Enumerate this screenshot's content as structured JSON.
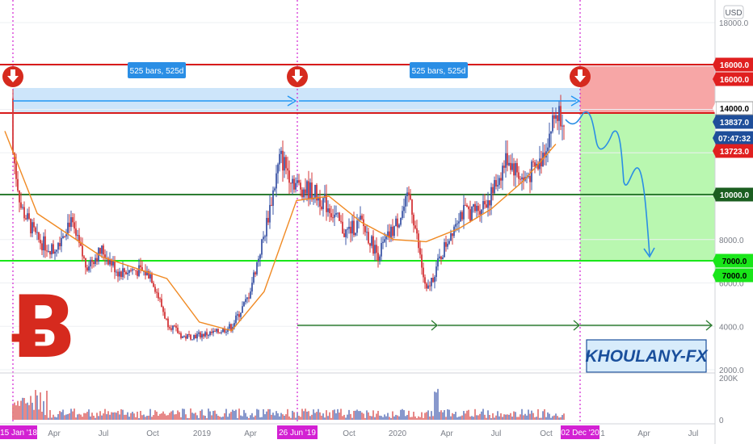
{
  "currency_label": "USD",
  "watermark_text": "KHOULANY-FX",
  "bitcoin_logo_glyph": "Ƀ",
  "chart_data": {
    "type": "candlestick",
    "title": "",
    "price_ticks": [
      "18000.0",
      "16000.0",
      "10000.0",
      "8000.0",
      "7000.0",
      "6000.0",
      "4000.0",
      "2000.0"
    ],
    "volume_ticks": [
      "200K",
      "0"
    ],
    "time_ticks": [
      "Apr",
      "Jul",
      "Oct",
      "2019",
      "Apr",
      "Oct",
      "2020",
      "Apr",
      "Jul",
      "Oct",
      "1",
      "Apr",
      "Jul"
    ],
    "highlighted_dates": [
      "15 Jan '18",
      "26 Jun '19",
      "02 Dec '20"
    ],
    "price_tags": [
      {
        "label": "16000.0",
        "color": "#e01f1f",
        "text_color": "#ffffff"
      },
      {
        "label": "16000.0",
        "color": "#e01f1f",
        "text_color": "#ffffff"
      },
      {
        "label": "14000.0",
        "color": "#ffffff",
        "text_color": "#000000"
      },
      {
        "label": "13837.0",
        "color": "#1f4e9a",
        "text_color": "#ffffff"
      },
      {
        "label": "07:47:32",
        "color": "#1f4e9a",
        "text_color": "#ffffff"
      },
      {
        "label": "13723.0",
        "color": "#e01f1f",
        "text_color": "#ffffff"
      },
      {
        "label": "10000.0",
        "color": "#1b5e20",
        "text_color": "#ffffff"
      },
      {
        "label": "7000.0",
        "color": "#19e619",
        "text_color": "#000000"
      },
      {
        "label": "7000.0",
        "color": "#19e619",
        "text_color": "#000000"
      }
    ],
    "ruler_labels": [
      "525 bars, 525d",
      "525 bars, 525d"
    ],
    "horizontal_levels": [
      {
        "price": 16000,
        "color": "#d81b1b",
        "name": "resistance-16000"
      },
      {
        "price": 13723,
        "color": "#d81b1b",
        "name": "resistance-13723"
      },
      {
        "price": 10000,
        "color": "#2e7d32",
        "name": "support-10000"
      },
      {
        "price": 7000,
        "color": "#19e619",
        "name": "support-7000"
      }
    ],
    "price_series": {
      "x": [
        "2018-01",
        "2018-02",
        "2018-03",
        "2018-04",
        "2018-05",
        "2018-06",
        "2018-07",
        "2018-08",
        "2018-09",
        "2018-10",
        "2018-11",
        "2018-12",
        "2019-01",
        "2019-02",
        "2019-03",
        "2019-04",
        "2019-05",
        "2019-06",
        "2019-07",
        "2019-08",
        "2019-09",
        "2019-10",
        "2019-11",
        "2019-12",
        "2020-01",
        "2020-02",
        "2020-03",
        "2020-04",
        "2020-05",
        "2020-06",
        "2020-07",
        "2020-08",
        "2020-09",
        "2020-10",
        "2020-11"
      ],
      "values": [
        14500,
        9500,
        8000,
        7500,
        8900,
        6800,
        7500,
        6500,
        6600,
        6400,
        4200,
        3500,
        3600,
        3700,
        4000,
        5300,
        8200,
        11800,
        10500,
        10200,
        9500,
        8300,
        8800,
        7300,
        8500,
        10000,
        5500,
        7400,
        9200,
        9300,
        10000,
        11800,
        10700,
        11500,
        13800
      ]
    },
    "moving_average": {
      "x": [
        "2018-01",
        "2018-03",
        "2018-05",
        "2018-07",
        "2018-09",
        "2018-11",
        "2019-01",
        "2019-03",
        "2019-05",
        "2019-07",
        "2019-09",
        "2019-11",
        "2020-01",
        "2020-03",
        "2020-05",
        "2020-07",
        "2020-09",
        "2020-11"
      ],
      "values": [
        13000,
        9200,
        8200,
        7200,
        6700,
        6200,
        4200,
        3800,
        5600,
        9800,
        10000,
        8800,
        8000,
        7900,
        8500,
        9400,
        10700,
        12400
      ]
    },
    "forecast_path": {
      "x": [
        "2020-12",
        "2021-01",
        "2021-02",
        "2021-03",
        "2021-04"
      ],
      "values": [
        13800,
        12200,
        12900,
        10300,
        7000
      ]
    }
  }
}
